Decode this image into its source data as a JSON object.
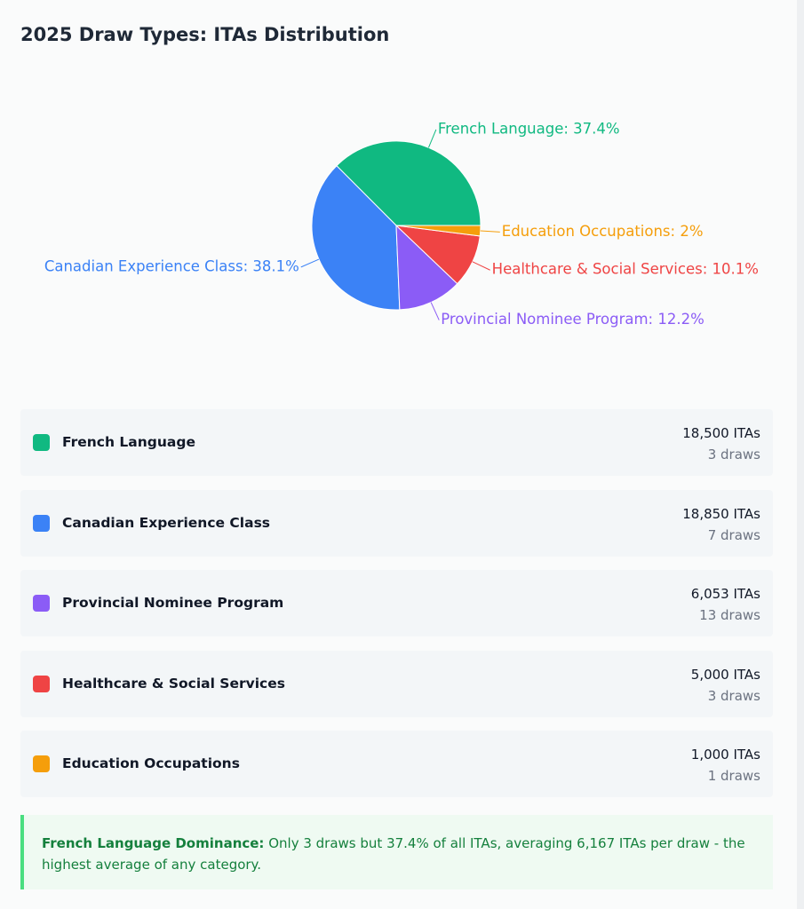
{
  "chart_data": {
    "type": "pie",
    "title": "2025 Draw Types: ITAs Distribution",
    "categories": [
      "French Language",
      "Canadian Experience Class",
      "Provincial Nominee Program",
      "Healthcare & Social Services",
      "Education Occupations"
    ],
    "values": [
      37.4,
      38.1,
      12.2,
      10.1,
      2
    ],
    "value_labels": [
      "French Language: 37.4%",
      "Canadian Experience Class: 38.1%",
      "Provincial Nominee Program: 12.2%",
      "Healthcare & Social Services: 10.1%",
      "Education Occupations: 2%"
    ],
    "colors": [
      "#10b981",
      "#3b82f6",
      "#8b5cf6",
      "#ef4444",
      "#f59e0b"
    ]
  },
  "list": {
    "items": [
      {
        "name": "French Language",
        "itas": "18,500 ITAs",
        "draws": "3 draws"
      },
      {
        "name": "Canadian Experience Class",
        "itas": "18,850 ITAs",
        "draws": "7 draws"
      },
      {
        "name": "Provincial Nominee Program",
        "itas": "6,053 ITAs",
        "draws": "13 draws"
      },
      {
        "name": "Healthcare & Social Services",
        "itas": "5,000 ITAs",
        "draws": "3 draws"
      },
      {
        "name": "Education Occupations",
        "itas": "1,000 ITAs",
        "draws": "1 draws"
      }
    ]
  },
  "note": {
    "title": "French Language Dominance:",
    "text": "Only 3 draws but 37.4% of all ITAs, averaging 6,167 ITAs per draw - the highest average of any category."
  }
}
